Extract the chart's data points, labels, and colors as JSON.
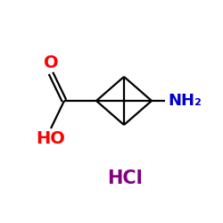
{
  "background_color": "#ffffff",
  "bond_color": "#000000",
  "O_color": "#ff0000",
  "HO_color": "#ff0000",
  "NH2_color": "#0000cd",
  "HCl_color": "#800080",
  "HCl_text": "HCl",
  "NH2_text": "NH₂",
  "O_text": "O",
  "HO_text": "HO",
  "fontsize_groups": 13,
  "fontsize_HCl": 15,
  "lw": 1.6
}
